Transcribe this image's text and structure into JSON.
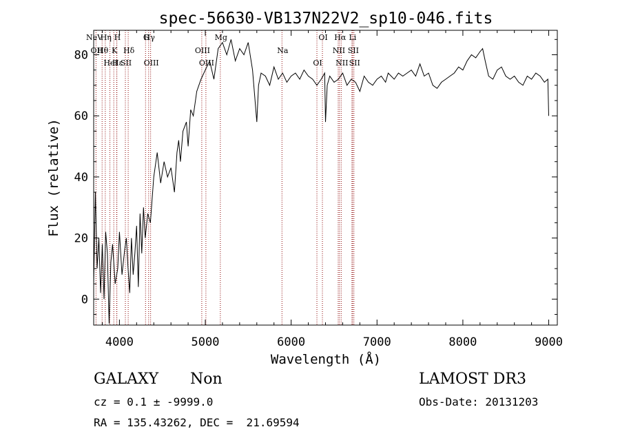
{
  "chart_data": {
    "type": "line",
    "title": "spec-56630-VB137N22V2_sp10-046.fits",
    "xlabel": "Wavelength (Å)",
    "ylabel": "Flux (relative)",
    "xlim": [
      3700,
      9100
    ],
    "ylim": [
      -8.5,
      88
    ],
    "x_ticks": [
      4000,
      5000,
      6000,
      7000,
      8000,
      9000
    ],
    "y_ticks": [
      0,
      20,
      40,
      60,
      80
    ],
    "grid": false,
    "line_color": "#000000",
    "marker_color": "#8b0000",
    "series": [
      {
        "x": [
          3700,
          3720,
          3740,
          3760,
          3780,
          3800,
          3820,
          3840,
          3860,
          3880,
          3900,
          3920,
          3950,
          3980,
          4000,
          4030,
          4060,
          4080,
          4100,
          4120,
          4140,
          4160,
          4180,
          4200,
          4220,
          4240,
          4260,
          4280,
          4300,
          4330,
          4360,
          4400,
          4440,
          4480,
          4520,
          4560,
          4600,
          4640,
          4670,
          4690,
          4710,
          4740,
          4780,
          4800,
          4830,
          4860,
          4900,
          4950,
          5000,
          5050,
          5100,
          5150,
          5200,
          5250,
          5300,
          5350,
          5400,
          5450,
          5500,
          5550,
          5600,
          5620,
          5650,
          5700,
          5750,
          5800,
          5850,
          5900,
          5950,
          6000,
          6050,
          6100,
          6150,
          6200,
          6250,
          6300,
          6350,
          6390,
          6400,
          6420,
          6450,
          6500,
          6550,
          6600,
          6650,
          6700,
          6750,
          6800,
          6850,
          6900,
          6950,
          7000,
          7050,
          7100,
          7130,
          7200,
          7250,
          7300,
          7350,
          7400,
          7450,
          7500,
          7550,
          7600,
          7650,
          7700,
          7750,
          7800,
          7850,
          7900,
          7950,
          8000,
          8050,
          8100,
          8150,
          8200,
          8230,
          8260,
          8300,
          8350,
          8400,
          8450,
          8500,
          8550,
          8600,
          8650,
          8700,
          8750,
          8800,
          8850,
          8900,
          8950,
          8990,
          9000
        ],
        "y": [
          5,
          35,
          10,
          20,
          2,
          18,
          0,
          22,
          15,
          -8,
          12,
          18,
          5,
          10,
          22,
          8,
          16,
          20,
          10,
          2,
          20,
          8,
          15,
          24,
          4,
          28,
          15,
          30,
          20,
          28,
          25,
          40,
          48,
          38,
          45,
          40,
          43,
          35,
          48,
          52,
          45,
          55,
          58,
          50,
          62,
          60,
          68,
          72,
          75,
          78,
          72,
          82,
          84,
          80,
          85,
          78,
          82,
          80,
          84,
          75,
          58,
          70,
          74,
          73,
          70,
          76,
          72,
          74,
          71,
          73,
          74,
          72,
          75,
          73,
          72,
          70,
          72,
          74,
          58,
          70,
          73,
          71,
          72,
          74,
          70,
          72,
          71,
          68,
          73,
          71,
          70,
          72,
          73,
          71,
          74,
          72,
          74,
          73,
          74,
          75,
          73,
          77,
          73,
          74,
          70,
          69,
          71,
          72,
          73,
          74,
          76,
          75,
          78,
          80,
          79,
          81,
          82,
          78,
          73,
          72,
          75,
          76,
          73,
          72,
          73,
          71,
          70,
          73,
          72,
          74,
          73,
          71,
          72,
          60
        ]
      }
    ],
    "lines": [
      {
        "label": "NeV",
        "x": 3426
      },
      {
        "label": "OII",
        "x": 3727
      },
      {
        "label": "OIII",
        "x": 4363
      },
      {
        "label": "Hγ",
        "x": 4340
      },
      {
        "label": "Hδ",
        "x": 4102
      },
      {
        "label": "Hε",
        "x": 3970
      },
      {
        "label": "Hη",
        "x": 3835
      },
      {
        "label": "Hθ",
        "x": 3798
      },
      {
        "label": "HeI",
        "x": 3889
      },
      {
        "label": "H",
        "x": 3968
      },
      {
        "label": "K",
        "x": 3934
      },
      {
        "label": "SII",
        "x": 4069
      },
      {
        "label": "G",
        "x": 4304
      },
      {
        "label": "OIII",
        "x": 4959
      },
      {
        "label": "OIII",
        "x": 5007
      },
      {
        "label": "Mg",
        "x": 5175
      },
      {
        "label": "Na",
        "x": 5893
      },
      {
        "label": "OI",
        "x": 6300
      },
      {
        "label": "OI",
        "x": 6364
      },
      {
        "label": "NII",
        "x": 6548
      },
      {
        "label": "NII",
        "x": 6583
      },
      {
        "label": "Hα",
        "x": 6563
      },
      {
        "label": "SII",
        "x": 6716
      },
      {
        "label": "SII",
        "x": 6731
      },
      {
        "label": "Li",
        "x": 6708
      }
    ]
  },
  "info": {
    "object_class": "GALAXY",
    "object_subclass": "Non",
    "survey": "LAMOST DR3",
    "redshift": "cz = 0.1 ± -9999.0",
    "obs_date": "Obs-Date: 20131203",
    "coords": "RA = 135.43262, DEC =  21.69594"
  }
}
